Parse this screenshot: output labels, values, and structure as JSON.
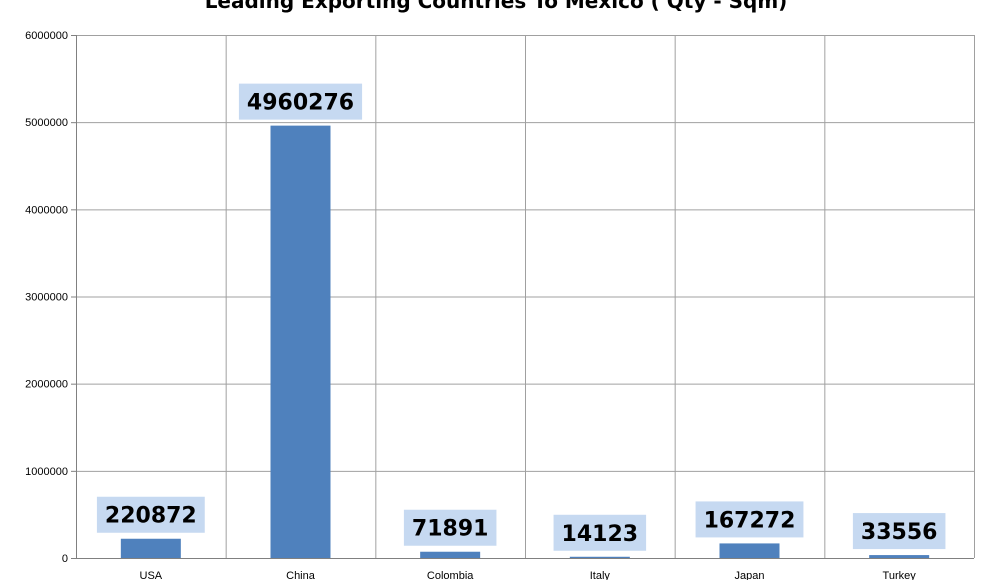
{
  "chart_data": {
    "type": "bar",
    "title": "Leading Exporting Countries To Mexico ( Qty - Sqm)",
    "categories": [
      "USA",
      "China",
      "Colombia",
      "Italy",
      "Japan",
      "Turkey"
    ],
    "values": [
      220872,
      4960276,
      71891,
      14123,
      167272,
      33556
    ],
    "data_labels": [
      "220872",
      "4960276",
      "71891",
      "14123",
      "167272",
      "33556"
    ],
    "y_ticks": [
      0,
      1000000,
      2000000,
      3000000,
      4000000,
      5000000,
      6000000
    ],
    "y_tick_labels": [
      "0",
      "1000000",
      "2000000",
      "3000000",
      "4000000",
      "5000000",
      "6000000"
    ],
    "ylim": [
      0,
      6000000
    ],
    "xlabel": "",
    "ylabel": "",
    "grid": true,
    "legend": "none",
    "bar_color": "#4F81BD",
    "label_background": "#C6D9F1",
    "grid_color": "#A0A0A0"
  }
}
